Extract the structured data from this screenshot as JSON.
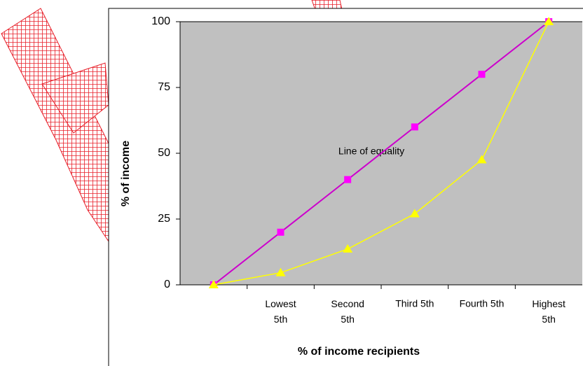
{
  "chart_data": {
    "type": "line",
    "categories": [
      null,
      "Lowest 5th",
      "Second 5th",
      "Third 5th",
      "Fourth 5th",
      "Highest 5th"
    ],
    "series": [
      {
        "name": "Line of equality",
        "color": "#cc00cc",
        "marker_color": "#ff00ff",
        "marker": "square",
        "values": [
          0,
          20,
          40,
          60,
          80,
          100
        ]
      },
      {
        "color": "#ffff00",
        "marker_color": "#ffff00",
        "marker": "triangle",
        "values": [
          0,
          4.6,
          13.6,
          27,
          47.5,
          100
        ]
      }
    ],
    "annotation": "Line of equality",
    "xlabel": "% of income recipients",
    "ylabel": "% of income",
    "ylim": [
      0,
      100
    ],
    "yticks": [
      0,
      25,
      50,
      75,
      100
    ],
    "plot_color": "#c0c0c0"
  }
}
